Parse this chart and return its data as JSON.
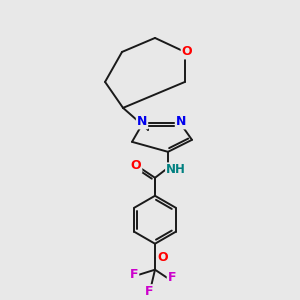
{
  "background_color": "#e8e8e8",
  "bond_color": "#1a1a1a",
  "atom_colors": {
    "O": "#ff0000",
    "N": "#0000ee",
    "F": "#cc00cc",
    "NH": "#008080",
    "C": "#1a1a1a"
  },
  "title": "",
  "figsize": [
    3.0,
    3.0
  ],
  "dpi": 100
}
